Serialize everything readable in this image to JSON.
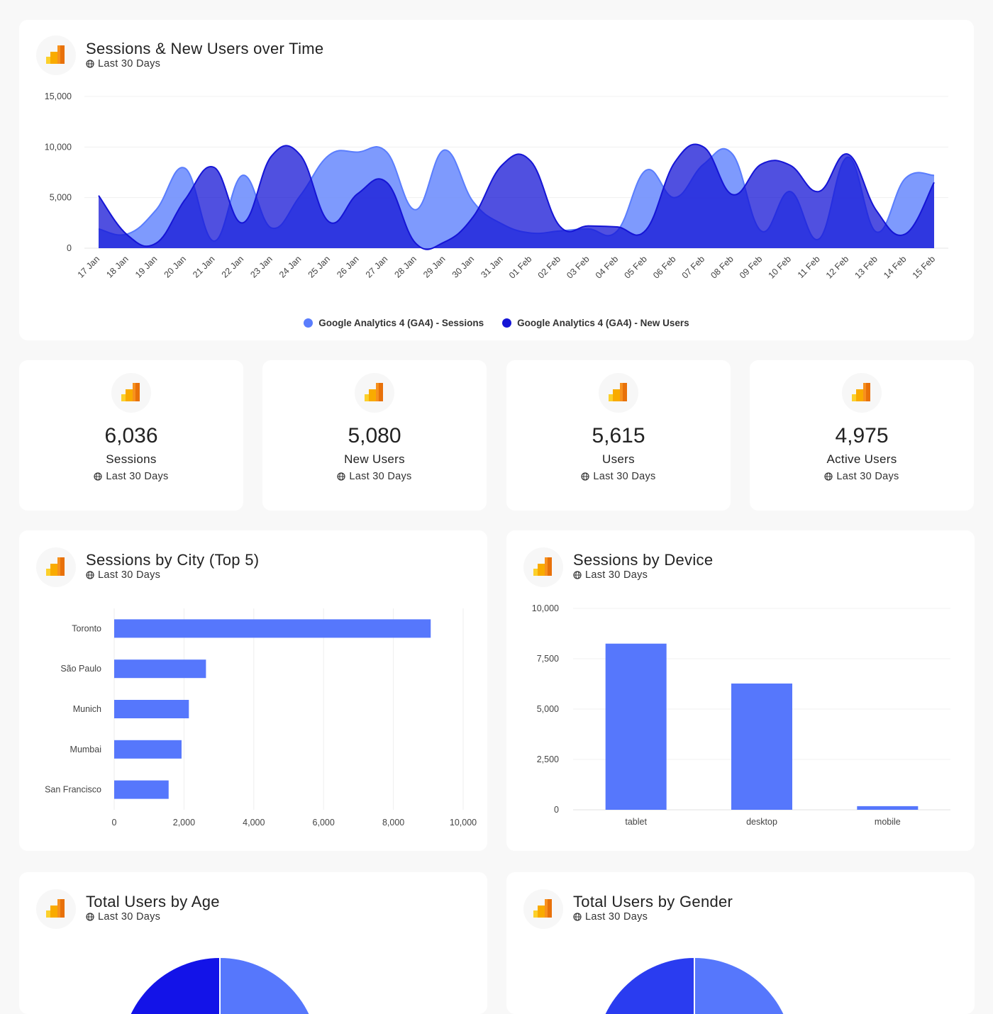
{
  "common": {
    "date_range": "Last 30 Days",
    "globe_icon": "globe-icon",
    "ga_icon": "google-analytics-icon"
  },
  "colors": {
    "sessions": "#5a7dfd",
    "new_users": "#1515d6",
    "bar": "#5677fc"
  },
  "timeline": {
    "title": "Sessions & New Users over Time",
    "subtitle": "Last 30 Days",
    "legend": [
      "Google Analytics 4 (GA4) - Sessions",
      "Google Analytics 4 (GA4) - New Users"
    ],
    "chart_data": {
      "type": "area",
      "x": [
        "17 Jan",
        "18 Jan",
        "19 Jan",
        "20 Jan",
        "21 Jan",
        "22 Jan",
        "23 Jan",
        "24 Jan",
        "25 Jan",
        "26 Jan",
        "27 Jan",
        "28 Jan",
        "29 Jan",
        "30 Jan",
        "31 Jan",
        "01 Feb",
        "02 Feb",
        "03 Feb",
        "04 Feb",
        "05 Feb",
        "06 Feb",
        "07 Feb",
        "08 Feb",
        "09 Feb",
        "10 Feb",
        "11 Feb",
        "12 Feb",
        "13 Feb",
        "14 Feb",
        "15 Feb"
      ],
      "yticks": [
        "0",
        "5,000",
        "10,000",
        "15,000"
      ],
      "ylim": [
        0,
        15000
      ],
      "series": [
        {
          "name": "Google Analytics 4 (GA4) - Sessions",
          "values": [
            1900,
            1400,
            3800,
            7900,
            700,
            7200,
            2000,
            5200,
            9200,
            9500,
            9500,
            3800,
            9700,
            4600,
            2400,
            1500,
            1700,
            1900,
            1700,
            7700,
            5000,
            8300,
            9300,
            1700,
            5600,
            900,
            9000,
            1600,
            6900,
            7200
          ]
        },
        {
          "name": "Google Analytics 4 (GA4) - New Users",
          "values": [
            5200,
            1300,
            500,
            4800,
            8000,
            2500,
            9100,
            9200,
            2600,
            5400,
            6500,
            500,
            600,
            3100,
            8200,
            8600,
            2200,
            2200,
            2100,
            1800,
            8500,
            10000,
            5300,
            8300,
            8200,
            5600,
            9300,
            3700,
            1400,
            6500
          ]
        }
      ]
    }
  },
  "kpis": [
    {
      "value": "6,036",
      "label": "Sessions",
      "sub": "Last 30 Days"
    },
    {
      "value": "5,080",
      "label": "New Users",
      "sub": "Last 30 Days"
    },
    {
      "value": "5,615",
      "label": "Users",
      "sub": "Last 30 Days"
    },
    {
      "value": "4,975",
      "label": "Active Users",
      "sub": "Last 30 Days"
    }
  ],
  "city": {
    "title": "Sessions by City (Top 5)",
    "subtitle": "Last 30 Days",
    "chart_data": {
      "type": "bar",
      "orientation": "horizontal",
      "categories": [
        "Toronto",
        "São Paulo",
        "Munich",
        "Mumbai",
        "San Francisco"
      ],
      "values": [
        9070,
        2630,
        2140,
        1930,
        1560
      ],
      "xticks": [
        "0",
        "2,000",
        "4,000",
        "6,000",
        "8,000",
        "10,000"
      ],
      "xlim": [
        0,
        10000
      ]
    }
  },
  "device": {
    "title": "Sessions by Device",
    "subtitle": "Last 30 Days",
    "chart_data": {
      "type": "bar",
      "categories": [
        "tablet",
        "desktop",
        "mobile"
      ],
      "values": [
        8250,
        6270,
        180
      ],
      "yticks": [
        "0",
        "2,500",
        "5,000",
        "7,500",
        "10,000"
      ],
      "ylim": [
        0,
        10000
      ]
    }
  },
  "age": {
    "title": "Total Users by Age",
    "subtitle": "Last 30 Days",
    "chart_data": {
      "type": "pie",
      "slice_colors": [
        "#5677fc",
        "#1313e8"
      ]
    }
  },
  "gender": {
    "title": "Total Users by Gender",
    "subtitle": "Last 30 Days",
    "chart_data": {
      "type": "pie",
      "slice_colors": [
        "#5677fc",
        "#2a3cf0"
      ]
    }
  }
}
